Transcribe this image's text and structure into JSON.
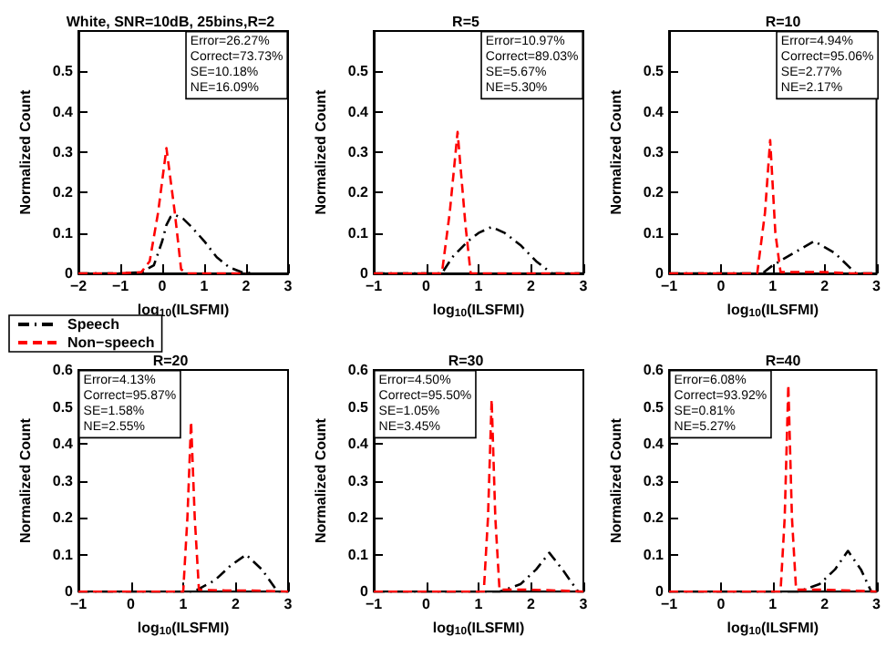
{
  "chart_data": [
    {
      "type": "line",
      "title": "White, SNR=10dB, 25bins,R=2",
      "xlabel": "log$_{10}$(ILSFMI)",
      "ylabel": "Normalized Count",
      "xlim": [
        -2,
        3
      ],
      "xticks": [
        -2,
        -1,
        0,
        1,
        2,
        3
      ],
      "ylim": [
        0,
        0.6
      ],
      "yticks": [
        0,
        0.1,
        0.2,
        0.3,
        0.4,
        0.5
      ],
      "grid": false,
      "legend": "bottom left",
      "annotations": [
        "Error=26.27%\nCorrect=73.73%\nSE=10.18%\nNE=16.09%"
      ],
      "series": [
        {
          "name": "Speech",
          "color": "#000000",
          "line_style": "dashdot",
          "x": [
            -2,
            -1.5,
            -1,
            -0.5,
            -0.2,
            0,
            0.1,
            0.2,
            0.3,
            0.5,
            0.7,
            1,
            1.3,
            1.6,
            1.9,
            2.2
          ],
          "values": [
            0,
            0,
            0,
            0.003,
            0.02,
            0.08,
            0.12,
            0.14,
            0.145,
            0.135,
            0.115,
            0.08,
            0.04,
            0.015,
            0.003,
            0
          ]
        },
        {
          "name": "Non−speech",
          "color": "#ff0000",
          "line_style": "dashed",
          "x": [
            -2,
            -1,
            -0.5,
            -0.3,
            -0.1,
            0.1,
            0.3,
            0.45,
            0.6,
            1,
            1.5,
            2
          ],
          "values": [
            0,
            0,
            0.003,
            0.03,
            0.15,
            0.31,
            0.15,
            0.01,
            0,
            0,
            0,
            0
          ]
        }
      ]
    },
    {
      "type": "line",
      "title": "R=5",
      "xlabel": "log$_{10}$(ILSFMI)",
      "ylabel": "Normalized Count",
      "xlim": [
        -1,
        3
      ],
      "xticks": [
        -1,
        0,
        1,
        2,
        3
      ],
      "ylim": [
        0,
        0.6
      ],
      "yticks": [
        0,
        0.1,
        0.2,
        0.3,
        0.4,
        0.5
      ],
      "grid": false,
      "annotations": [
        "Error=10.97%\nCorrect=89.03%\nSE=5.67%\nNE=5.30%"
      ],
      "series": [
        {
          "color": "#000000",
          "line_style": "dashdot",
          "x": [
            -1,
            0,
            0.3,
            0.5,
            0.8,
            1.0,
            1.25,
            1.5,
            1.8,
            2.1,
            2.4,
            3
          ],
          "values": [
            0,
            0,
            0,
            0.04,
            0.08,
            0.1,
            0.115,
            0.1,
            0.07,
            0.03,
            0,
            0
          ]
        },
        {
          "color": "#ff0000",
          "line_style": "dashed",
          "x": [
            -1,
            0,
            0.3,
            0.45,
            0.6,
            0.75,
            0.85,
            1.5,
            3
          ],
          "values": [
            0,
            0,
            0,
            0.15,
            0.35,
            0.12,
            0,
            0,
            0
          ]
        }
      ]
    },
    {
      "type": "line",
      "title": "R=10",
      "xlabel": "log$_{10}$(ILSFMI)",
      "ylabel": "Normalized Count",
      "xlim": [
        -1,
        3
      ],
      "xticks": [
        -1,
        0,
        1,
        2,
        3
      ],
      "ylim": [
        0,
        0.6
      ],
      "yticks": [
        0,
        0.1,
        0.2,
        0.3,
        0.4,
        0.5
      ],
      "grid": false,
      "annotations": [
        "Error=4.94%\nCorrect=95.06%\nSE=2.77%\nNE=2.17%"
      ],
      "series": [
        {
          "color": "#000000",
          "line_style": "dashdot",
          "x": [
            -1,
            0.8,
            1.0,
            1.4,
            1.8,
            2.2,
            2.6,
            3
          ],
          "values": [
            0,
            0,
            0.02,
            0.05,
            0.08,
            0.05,
            0,
            0
          ]
        },
        {
          "color": "#ff0000",
          "line_style": "dashed",
          "x": [
            -1,
            0.7,
            0.85,
            0.95,
            1.05,
            1.15,
            1.5,
            2,
            2.5,
            3
          ],
          "values": [
            0,
            0,
            0.15,
            0.33,
            0.1,
            0.003,
            0.003,
            0.003,
            0,
            0
          ]
        }
      ]
    },
    {
      "type": "line",
      "title": "R=20",
      "xlabel": "log$_{10}$(ILSFMI)",
      "ylabel": "Normalized Count",
      "xlim": [
        -1,
        3
      ],
      "xticks": [
        -1,
        0,
        1,
        2,
        3
      ],
      "ylim": [
        0,
        0.6
      ],
      "yticks": [
        0,
        0.1,
        0.2,
        0.3,
        0.4,
        0.5,
        0.6
      ],
      "grid": false,
      "annotations": [
        "Error=4.13%\nCorrect=95.87%\nSE=1.58%\nNE=2.55%"
      ],
      "series": [
        {
          "color": "#000000",
          "line_style": "dashdot",
          "x": [
            -1,
            1.2,
            1.6,
            1.9,
            2.2,
            2.5,
            2.8,
            3
          ],
          "values": [
            0,
            0,
            0.03,
            0.07,
            0.1,
            0.06,
            0,
            0
          ]
        },
        {
          "color": "#ff0000",
          "line_style": "dashed",
          "x": [
            -1,
            1.0,
            1.08,
            1.15,
            1.22,
            1.3,
            1.8,
            2.3,
            3
          ],
          "values": [
            0,
            0,
            0.2,
            0.46,
            0.2,
            0.005,
            0.003,
            0.003,
            0
          ]
        }
      ]
    },
    {
      "type": "line",
      "title": "R=30",
      "xlabel": "log$_{10}$(ILSFMI)",
      "ylabel": "Normalized Count",
      "xlim": [
        -1,
        3
      ],
      "xticks": [
        -1,
        0,
        1,
        2,
        3
      ],
      "ylim": [
        0,
        0.6
      ],
      "yticks": [
        0,
        0.1,
        0.2,
        0.3,
        0.4,
        0.5,
        0.6
      ],
      "grid": false,
      "annotations": [
        "Error=4.50%\nCorrect=95.50%\nSE=1.05%\nNE=3.45%"
      ],
      "series": [
        {
          "color": "#000000",
          "line_style": "dashdot",
          "x": [
            -1,
            1.4,
            1.8,
            2.1,
            2.35,
            2.6,
            2.9,
            3
          ],
          "values": [
            0,
            0,
            0.02,
            0.06,
            0.105,
            0.06,
            0,
            0
          ]
        },
        {
          "color": "#ff0000",
          "line_style": "dashed",
          "x": [
            -1,
            1.1,
            1.18,
            1.25,
            1.32,
            1.4,
            2,
            2.5,
            3
          ],
          "values": [
            0,
            0,
            0.2,
            0.52,
            0.2,
            0.005,
            0.005,
            0.003,
            0
          ]
        }
      ]
    },
    {
      "type": "line",
      "title": "R=40",
      "xlabel": "log$_{10}$(ILSFMI)",
      "ylabel": "Normalized Count",
      "xlim": [
        -1,
        3
      ],
      "xticks": [
        -1,
        0,
        1,
        2,
        3
      ],
      "ylim": [
        0,
        0.6
      ],
      "yticks": [
        0,
        0.1,
        0.2,
        0.3,
        0.4,
        0.5,
        0.6
      ],
      "grid": false,
      "annotations": [
        "Error=6.08%\nCorrect=93.92%\nSE=0.81%\nNE=5.27%"
      ],
      "series": [
        {
          "color": "#000000",
          "line_style": "dashdot",
          "x": [
            -1,
            1.5,
            1.9,
            2.2,
            2.45,
            2.7,
            2.9,
            3
          ],
          "values": [
            0,
            0,
            0.02,
            0.06,
            0.11,
            0.06,
            0,
            0
          ]
        },
        {
          "color": "#ff0000",
          "line_style": "dashed",
          "x": [
            -1,
            1.15,
            1.23,
            1.3,
            1.37,
            1.45,
            2,
            2.5,
            3
          ],
          "values": [
            0,
            0,
            0.2,
            0.56,
            0.2,
            0.005,
            0.005,
            0.003,
            0
          ]
        }
      ]
    }
  ]
}
